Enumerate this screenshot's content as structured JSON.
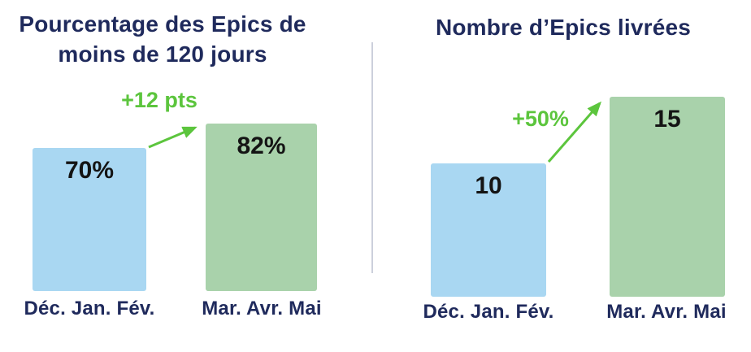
{
  "style": {
    "background": "#ffffff",
    "title_navy": "#1f2a5c",
    "value_black": "#141414",
    "growth_green": "#5cc53d",
    "bar_blue": "#a9d7f2",
    "bar_green": "#a9d2ab",
    "divider_gray": "#ccd0dc"
  },
  "chart_data": [
    {
      "type": "bar",
      "title": "Pourcentage des Epics de moins de 120 jours",
      "title_lines": [
        "Pourcentage des Epics de",
        "moins de 120 jours"
      ],
      "categories": [
        "Déc. Jan. Fév.",
        "Mar. Avr. Mai"
      ],
      "values": [
        70,
        82
      ],
      "value_labels": [
        "70%",
        "82%"
      ],
      "annotation": "+12 pts",
      "unit": "%",
      "ylim": [
        0,
        82
      ],
      "grid": false,
      "axes": "hidden",
      "legend": false,
      "bar_colors": [
        "#a9d7f2",
        "#a9d2ab"
      ]
    },
    {
      "type": "bar",
      "title": "Nombre d’Epics livrées",
      "title_lines": [
        "Nombre d’Epics livrées"
      ],
      "categories": [
        "Déc. Jan. Fév.",
        "Mar. Avr. Mai"
      ],
      "values": [
        10,
        15
      ],
      "value_labels": [
        "10",
        "15"
      ],
      "annotation": "+50%",
      "unit": "epics",
      "ylim": [
        0,
        15
      ],
      "grid": false,
      "axes": "hidden",
      "legend": false,
      "bar_colors": [
        "#a9d7f2",
        "#a9d2ab"
      ]
    }
  ]
}
